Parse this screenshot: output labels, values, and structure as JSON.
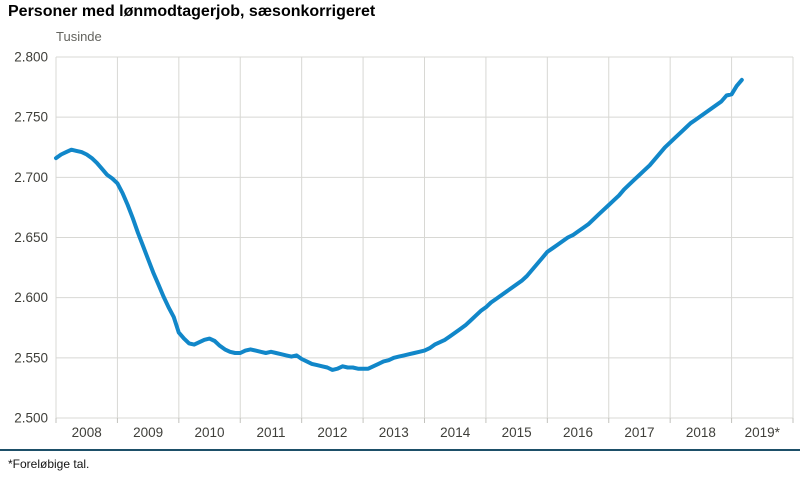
{
  "title": "Personer med lønmodtagerjob, sæsonkorrigeret",
  "footnote": "*Foreløbige tal.",
  "colors": {
    "line": "#1187c9",
    "grid": "#d8d8d4",
    "tick": "#c2c2bd",
    "axis_text": "#3f3f3a",
    "unit_text": "#64645f",
    "divider": "#1d4f68",
    "background": "#ffffff"
  },
  "chart_data": {
    "type": "line",
    "title": "Personer med lønmodtagerjob, sæsonkorrigeret",
    "unit_label": "Tusinde",
    "xlabel": "",
    "ylabel": "Tusinde",
    "ylim": [
      2500,
      2800
    ],
    "ytick_step": 50,
    "ytick_labels_bottom_to_top": [
      "2.500",
      "2.550",
      "2.600",
      "2.650",
      "2.700",
      "2.750",
      "2.800"
    ],
    "x_year_labels": [
      "2008",
      "2009",
      "2010",
      "2011",
      "2012",
      "2013",
      "2014",
      "2015",
      "2016",
      "2017",
      "2018",
      "2019*"
    ],
    "x_start": "2008-01",
    "x_end": "2019-03",
    "grid": true,
    "legend": "none",
    "line_color": "#1187c9",
    "series": [
      {
        "name": "Personer med lønmodtagerjob, sæsonkorrigeret (tusinde)",
        "frequency": "monthly",
        "values": [
          2716,
          2719,
          2721,
          2723,
          2722,
          2721,
          2719,
          2716,
          2712,
          2707,
          2702,
          2699,
          2695,
          2687,
          2677,
          2666,
          2654,
          2643,
          2632,
          2621,
          2611,
          2601,
          2592,
          2584,
          2571,
          2566,
          2562,
          2561,
          2563,
          2565,
          2566,
          2564,
          2560,
          2557,
          2555,
          2554,
          2554,
          2556,
          2557,
          2556,
          2555,
          2554,
          2555,
          2554,
          2553,
          2552,
          2551,
          2552,
          2549,
          2547,
          2545,
          2544,
          2543,
          2542,
          2540,
          2541,
          2543,
          2542,
          2542,
          2541,
          2541,
          2541,
          2543,
          2545,
          2547,
          2548,
          2550,
          2551,
          2552,
          2553,
          2554,
          2555,
          2556,
          2558,
          2561,
          2563,
          2565,
          2568,
          2571,
          2574,
          2577,
          2581,
          2585,
          2589,
          2592,
          2596,
          2599,
          2602,
          2605,
          2608,
          2611,
          2614,
          2618,
          2623,
          2628,
          2633,
          2638,
          2641,
          2644,
          2647,
          2650,
          2652,
          2655,
          2658,
          2661,
          2665,
          2669,
          2673,
          2677,
          2681,
          2685,
          2690,
          2694,
          2698,
          2702,
          2706,
          2710,
          2715,
          2720,
          2725,
          2729,
          2733,
          2737,
          2741,
          2745,
          2748,
          2751,
          2754,
          2757,
          2760,
          2763,
          2768,
          2769,
          2776,
          2781
        ]
      }
    ]
  }
}
